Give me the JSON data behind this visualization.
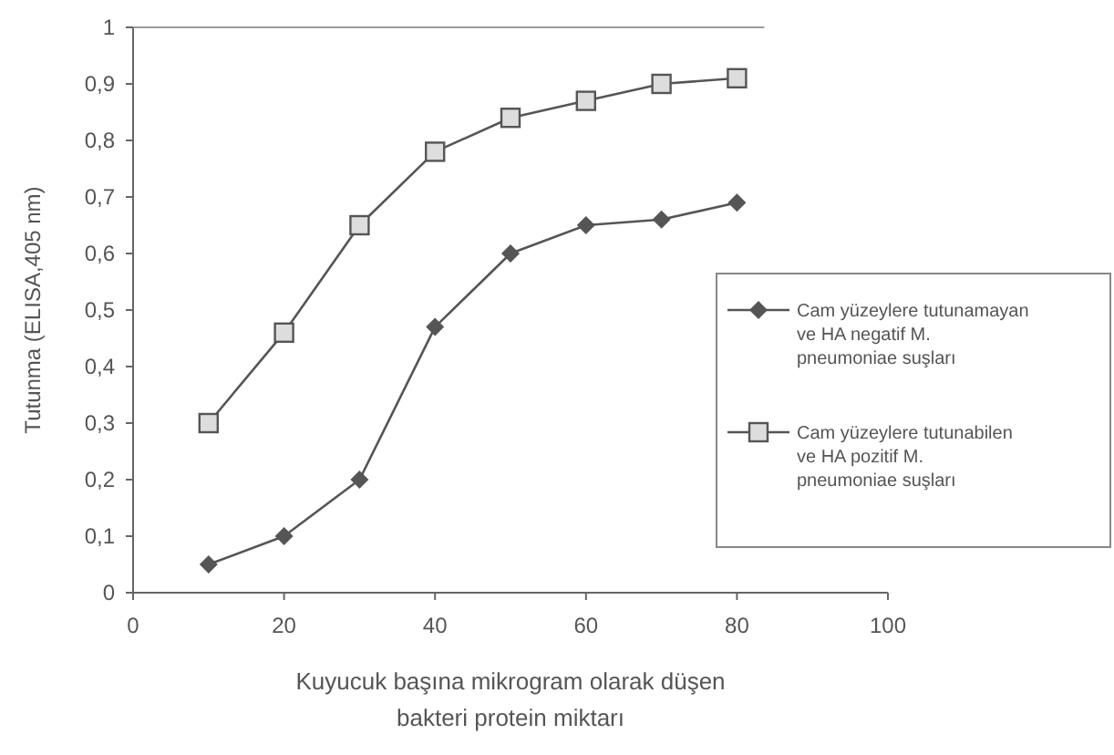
{
  "chart_data": {
    "type": "line",
    "xlabel": "Kuyucuk başına mikrogram olarak düşen bakteri protein miktarı",
    "ylabel": "Tutunma (ELISA,405 nm)",
    "x": [
      10,
      20,
      30,
      40,
      50,
      60,
      70,
      80
    ],
    "series": [
      {
        "name": "Cam yüzeylere tutunamayan ve HA negatif M. pneumoniae suşları",
        "color": "#555555",
        "marker": "diamond",
        "values": [
          0.05,
          0.1,
          0.2,
          0.47,
          0.6,
          0.65,
          0.66,
          0.69
        ]
      },
      {
        "name": "Cam yüzeylere tutunabilen ve HA pozitif M. pneumoniae suşları",
        "color": "#555555",
        "marker": "square",
        "values": [
          0.3,
          0.46,
          0.65,
          0.78,
          0.84,
          0.87,
          0.9,
          0.91
        ]
      }
    ],
    "xlim": [
      0,
      100
    ],
    "xticks": [
      0,
      20,
      40,
      60,
      80,
      100
    ],
    "ylim": [
      0,
      1
    ],
    "yticks": [
      0,
      {
        "value": 0.1,
        "label": "0,1"
      },
      {
        "value": 0.2,
        "label": "0,2"
      },
      {
        "value": 0.3,
        "label": "0,3"
      },
      {
        "value": 0.4,
        "label": "0,4"
      },
      {
        "value": 0.5,
        "label": "0,5"
      },
      {
        "value": 0.6,
        "label": "0,6"
      },
      {
        "value": 0.7,
        "label": "0,7"
      },
      {
        "value": 0.8,
        "label": "0,8"
      },
      {
        "value": 0.9,
        "label": "0,9"
      },
      1
    ],
    "grid": false,
    "legend": "right",
    "line_style": "solid"
  }
}
